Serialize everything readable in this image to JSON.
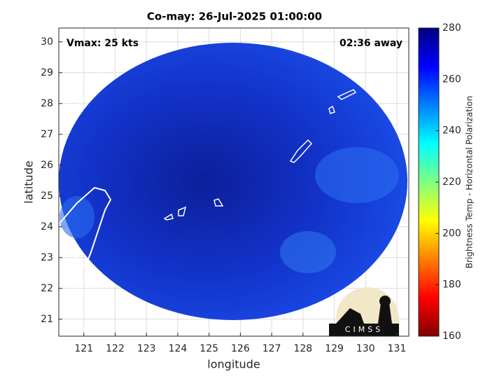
{
  "chart_data": {
    "type": "map",
    "title": "Co-may: 26-Jul-2025 01:00:00",
    "xlabel": "longitude",
    "ylabel": "latitude",
    "xlim": [
      120.2,
      131.38
    ],
    "xticks": [
      121,
      122,
      123,
      124,
      125,
      126,
      127,
      128,
      129,
      130,
      131
    ],
    "ylim": [
      20.45,
      30.45
    ],
    "yticks": [
      21,
      22,
      23,
      24,
      25,
      26,
      27,
      28,
      29,
      30
    ],
    "grid": true,
    "annotations": [
      "Vmax: 25 kts",
      "02:36 away"
    ],
    "colorbar": {
      "label": "Brightness Temp - Horizontal Polarization",
      "colormap": "jet",
      "lim": [
        160,
        280
      ],
      "ticks": [
        160,
        180,
        200,
        220,
        240,
        260,
        280
      ]
    },
    "logo": "CIMSS"
  }
}
